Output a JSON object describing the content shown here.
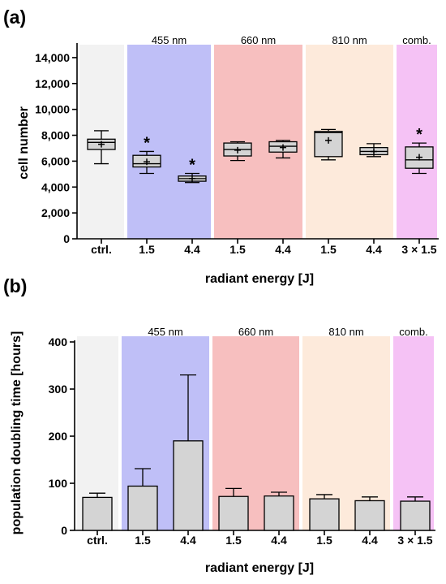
{
  "chart_data": [
    {
      "type": "box",
      "panel_label": "(a)",
      "ylabel": "cell number",
      "xlabel": "radiant energy [J]",
      "ylim": [
        0,
        15000
      ],
      "yticks": [
        0,
        2000,
        4000,
        6000,
        8000,
        10000,
        12000,
        14000
      ],
      "ytick_labels": [
        "0",
        "2,000",
        "4,000",
        "6,000",
        "8,000",
        "10,000",
        "12,000",
        "14,000"
      ],
      "groups": [
        {
          "label": "",
          "color": "#f2f2f2",
          "from": 0,
          "to": 0
        },
        {
          "label": "455 nm",
          "color": "#bfbff7",
          "from": 1,
          "to": 2
        },
        {
          "label": "660 nm",
          "color": "#f7bfbf",
          "from": 3,
          "to": 4
        },
        {
          "label": "810 nm",
          "color": "#fdeadb",
          "from": 5,
          "to": 6
        },
        {
          "label": "comb.",
          "color": "#f5c2f5",
          "from": 7,
          "to": 7
        }
      ],
      "categories": [
        "ctrl.",
        "1.5",
        "4.4",
        "1.5",
        "4.4",
        "1.5",
        "4.4",
        "3 × 1.5"
      ],
      "boxes": [
        {
          "min": 5800,
          "q1": 6900,
          "median": 7450,
          "q3": 7700,
          "max": 8350,
          "mean": 7300,
          "sig": false
        },
        {
          "min": 5050,
          "q1": 5550,
          "median": 5800,
          "q3": 6450,
          "max": 6750,
          "mean": 5950,
          "sig": true
        },
        {
          "min": 4350,
          "q1": 4450,
          "median": 4650,
          "q3": 4850,
          "max": 5050,
          "mean": 4650,
          "sig": true
        },
        {
          "min": 6050,
          "q1": 6400,
          "median": 6900,
          "q3": 7400,
          "max": 7500,
          "mean": 6850,
          "sig": false
        },
        {
          "min": 6250,
          "q1": 6700,
          "median": 7150,
          "q3": 7500,
          "max": 7600,
          "mean": 7050,
          "sig": false
        },
        {
          "min": 6100,
          "q1": 6350,
          "median": 8200,
          "q3": 8300,
          "max": 8450,
          "mean": 7600,
          "sig": false
        },
        {
          "min": 6350,
          "q1": 6500,
          "median": 6750,
          "q3": 7050,
          "max": 7350,
          "mean": 6750,
          "sig": false
        },
        {
          "min": 5050,
          "q1": 5450,
          "median": 6100,
          "q3": 7100,
          "max": 7400,
          "mean": 6300,
          "sig": true
        }
      ],
      "significance_marker": "*"
    },
    {
      "type": "bar",
      "panel_label": "(b)",
      "ylabel": "population doubling time [hours]",
      "xlabel": "radiant energy [J]",
      "ylim": [
        0,
        400
      ],
      "yticks": [
        0,
        100,
        200,
        300,
        400
      ],
      "ytick_labels": [
        "0",
        "100",
        "200",
        "300",
        "400"
      ],
      "groups": [
        {
          "label": "",
          "color": "#f2f2f2",
          "from": 0,
          "to": 0
        },
        {
          "label": "455 nm",
          "color": "#bfbff7",
          "from": 1,
          "to": 2
        },
        {
          "label": "660 nm",
          "color": "#f7bfbf",
          "from": 3,
          "to": 4
        },
        {
          "label": "810 nm",
          "color": "#fdeadb",
          "from": 5,
          "to": 6
        },
        {
          "label": "comb.",
          "color": "#f5c2f5",
          "from": 7,
          "to": 7
        }
      ],
      "categories": [
        "ctrl.",
        "1.5",
        "4.4",
        "1.5",
        "4.4",
        "1.5",
        "4.4",
        "3 × 1.5"
      ],
      "values": [
        70,
        94,
        190,
        72,
        73,
        67,
        63,
        62
      ],
      "errors": [
        9,
        37,
        140,
        17,
        8,
        9,
        8,
        9
      ]
    }
  ]
}
